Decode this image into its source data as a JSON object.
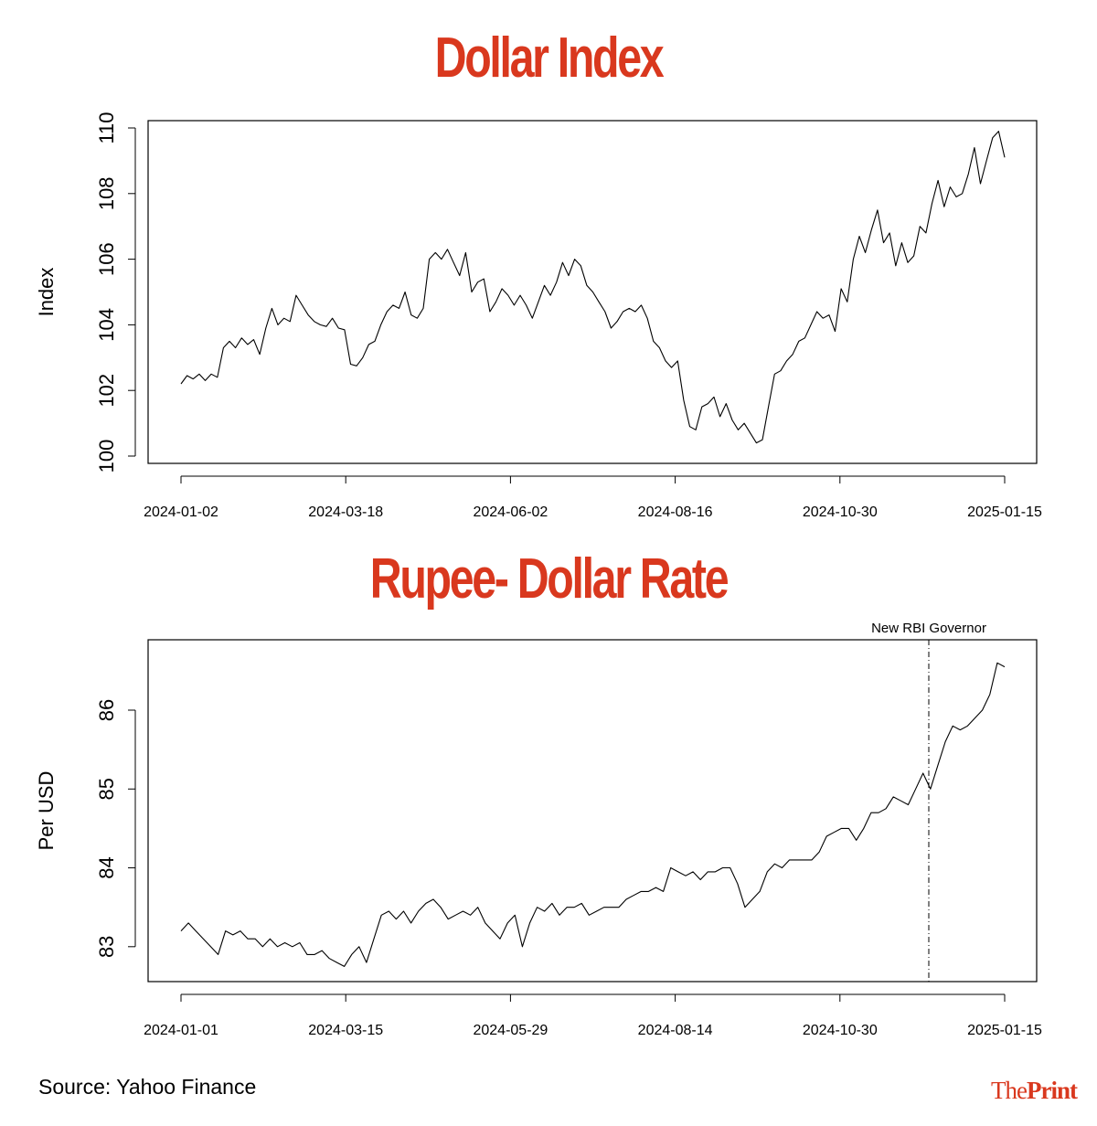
{
  "chart_data": [
    {
      "type": "line",
      "title": "Dollar Index",
      "ylabel": "Index",
      "xlabel": "",
      "ylim": [
        100,
        110
      ],
      "yticks": [
        100,
        102,
        104,
        106,
        108,
        110
      ],
      "xticks": [
        "2024-01-02",
        "2024-03-18",
        "2024-06-02",
        "2024-08-16",
        "2024-10-30",
        "2025-01-15"
      ],
      "grid": false,
      "series": [
        {
          "values": [
            102.2,
            102.45,
            102.35,
            102.5,
            102.3,
            102.5,
            102.4,
            103.3,
            103.5,
            103.3,
            103.6,
            103.4,
            103.55,
            103.1,
            103.9,
            104.5,
            104.0,
            104.2,
            104.1,
            104.9,
            104.6,
            104.3,
            104.1,
            104.0,
            103.95,
            104.2,
            103.9,
            103.85,
            102.8,
            102.75,
            103.0,
            103.4,
            103.5,
            104.0,
            104.4,
            104.6,
            104.5,
            105.0,
            104.3,
            104.2,
            104.5,
            106.0,
            106.2,
            106.0,
            106.3,
            105.9,
            105.5,
            106.2,
            105.0,
            105.3,
            105.4,
            104.4,
            104.7,
            105.1,
            104.9,
            104.6,
            104.9,
            104.6,
            104.2,
            104.7,
            105.2,
            104.9,
            105.3,
            105.9,
            105.5,
            106.0,
            105.8,
            105.2,
            105.0,
            104.7,
            104.4,
            103.9,
            104.1,
            104.4,
            104.5,
            104.4,
            104.6,
            104.2,
            103.5,
            103.3,
            102.9,
            102.7,
            102.9,
            101.7,
            100.9,
            100.8,
            101.5,
            101.6,
            101.8,
            101.2,
            101.6,
            101.1,
            100.8,
            101.0,
            100.7,
            100.4,
            100.5,
            101.5,
            102.5,
            102.6,
            102.9,
            103.1,
            103.5,
            103.6,
            104.0,
            104.4,
            104.2,
            104.3,
            103.8,
            105.1,
            104.7,
            106.0,
            106.7,
            106.2,
            106.9,
            107.5,
            106.5,
            106.8,
            105.8,
            106.5,
            105.9,
            106.1,
            107.0,
            106.8,
            107.7,
            108.4,
            107.6,
            108.2,
            107.9,
            108.0,
            108.6,
            109.4,
            108.3,
            109.0,
            109.7,
            109.9,
            109.1
          ]
        }
      ]
    },
    {
      "type": "line",
      "title": "Rupee- Dollar Rate",
      "ylabel": "Per USD",
      "xlabel": "",
      "ylim": [
        82.65,
        86.8
      ],
      "yticks": [
        83,
        84,
        85,
        86
      ],
      "xticks": [
        "2024-01-01",
        "2024-03-15",
        "2024-05-29",
        "2024-08-14",
        "2024-10-30",
        "2025-01-15"
      ],
      "grid": false,
      "annotation": {
        "label": "New RBI Governor"
      },
      "series": [
        {
          "values": [
            83.2,
            83.3,
            83.2,
            83.1,
            83.0,
            82.9,
            83.2,
            83.15,
            83.2,
            83.1,
            83.1,
            83.0,
            83.1,
            83.0,
            83.05,
            83.0,
            83.05,
            82.9,
            82.9,
            82.95,
            82.85,
            82.8,
            82.75,
            82.9,
            83.0,
            82.8,
            83.1,
            83.4,
            83.45,
            83.35,
            83.45,
            83.3,
            83.45,
            83.55,
            83.6,
            83.5,
            83.35,
            83.4,
            83.45,
            83.4,
            83.5,
            83.3,
            83.2,
            83.1,
            83.3,
            83.4,
            83.0,
            83.3,
            83.5,
            83.45,
            83.55,
            83.4,
            83.5,
            83.5,
            83.55,
            83.4,
            83.45,
            83.5,
            83.5,
            83.5,
            83.6,
            83.65,
            83.7,
            83.7,
            83.75,
            83.7,
            84.0,
            83.95,
            83.9,
            83.95,
            83.85,
            83.95,
            83.95,
            84.0,
            84.0,
            83.8,
            83.5,
            83.6,
            83.7,
            83.95,
            84.05,
            84.0,
            84.1,
            84.1,
            84.1,
            84.1,
            84.2,
            84.4,
            84.45,
            84.5,
            84.5,
            84.35,
            84.5,
            84.7,
            84.7,
            84.75,
            84.9,
            84.85,
            84.8,
            85.0,
            85.2,
            85.0,
            85.3,
            85.6,
            85.8,
            85.75,
            85.8,
            85.9,
            86.0,
            86.2,
            86.6,
            86.55
          ]
        }
      ]
    }
  ],
  "source": "Source: Yahoo Finance",
  "logo": {
    "part1": "The",
    "part2": "Print"
  },
  "colors": {
    "title": "#d9381e",
    "line": "#000000"
  }
}
